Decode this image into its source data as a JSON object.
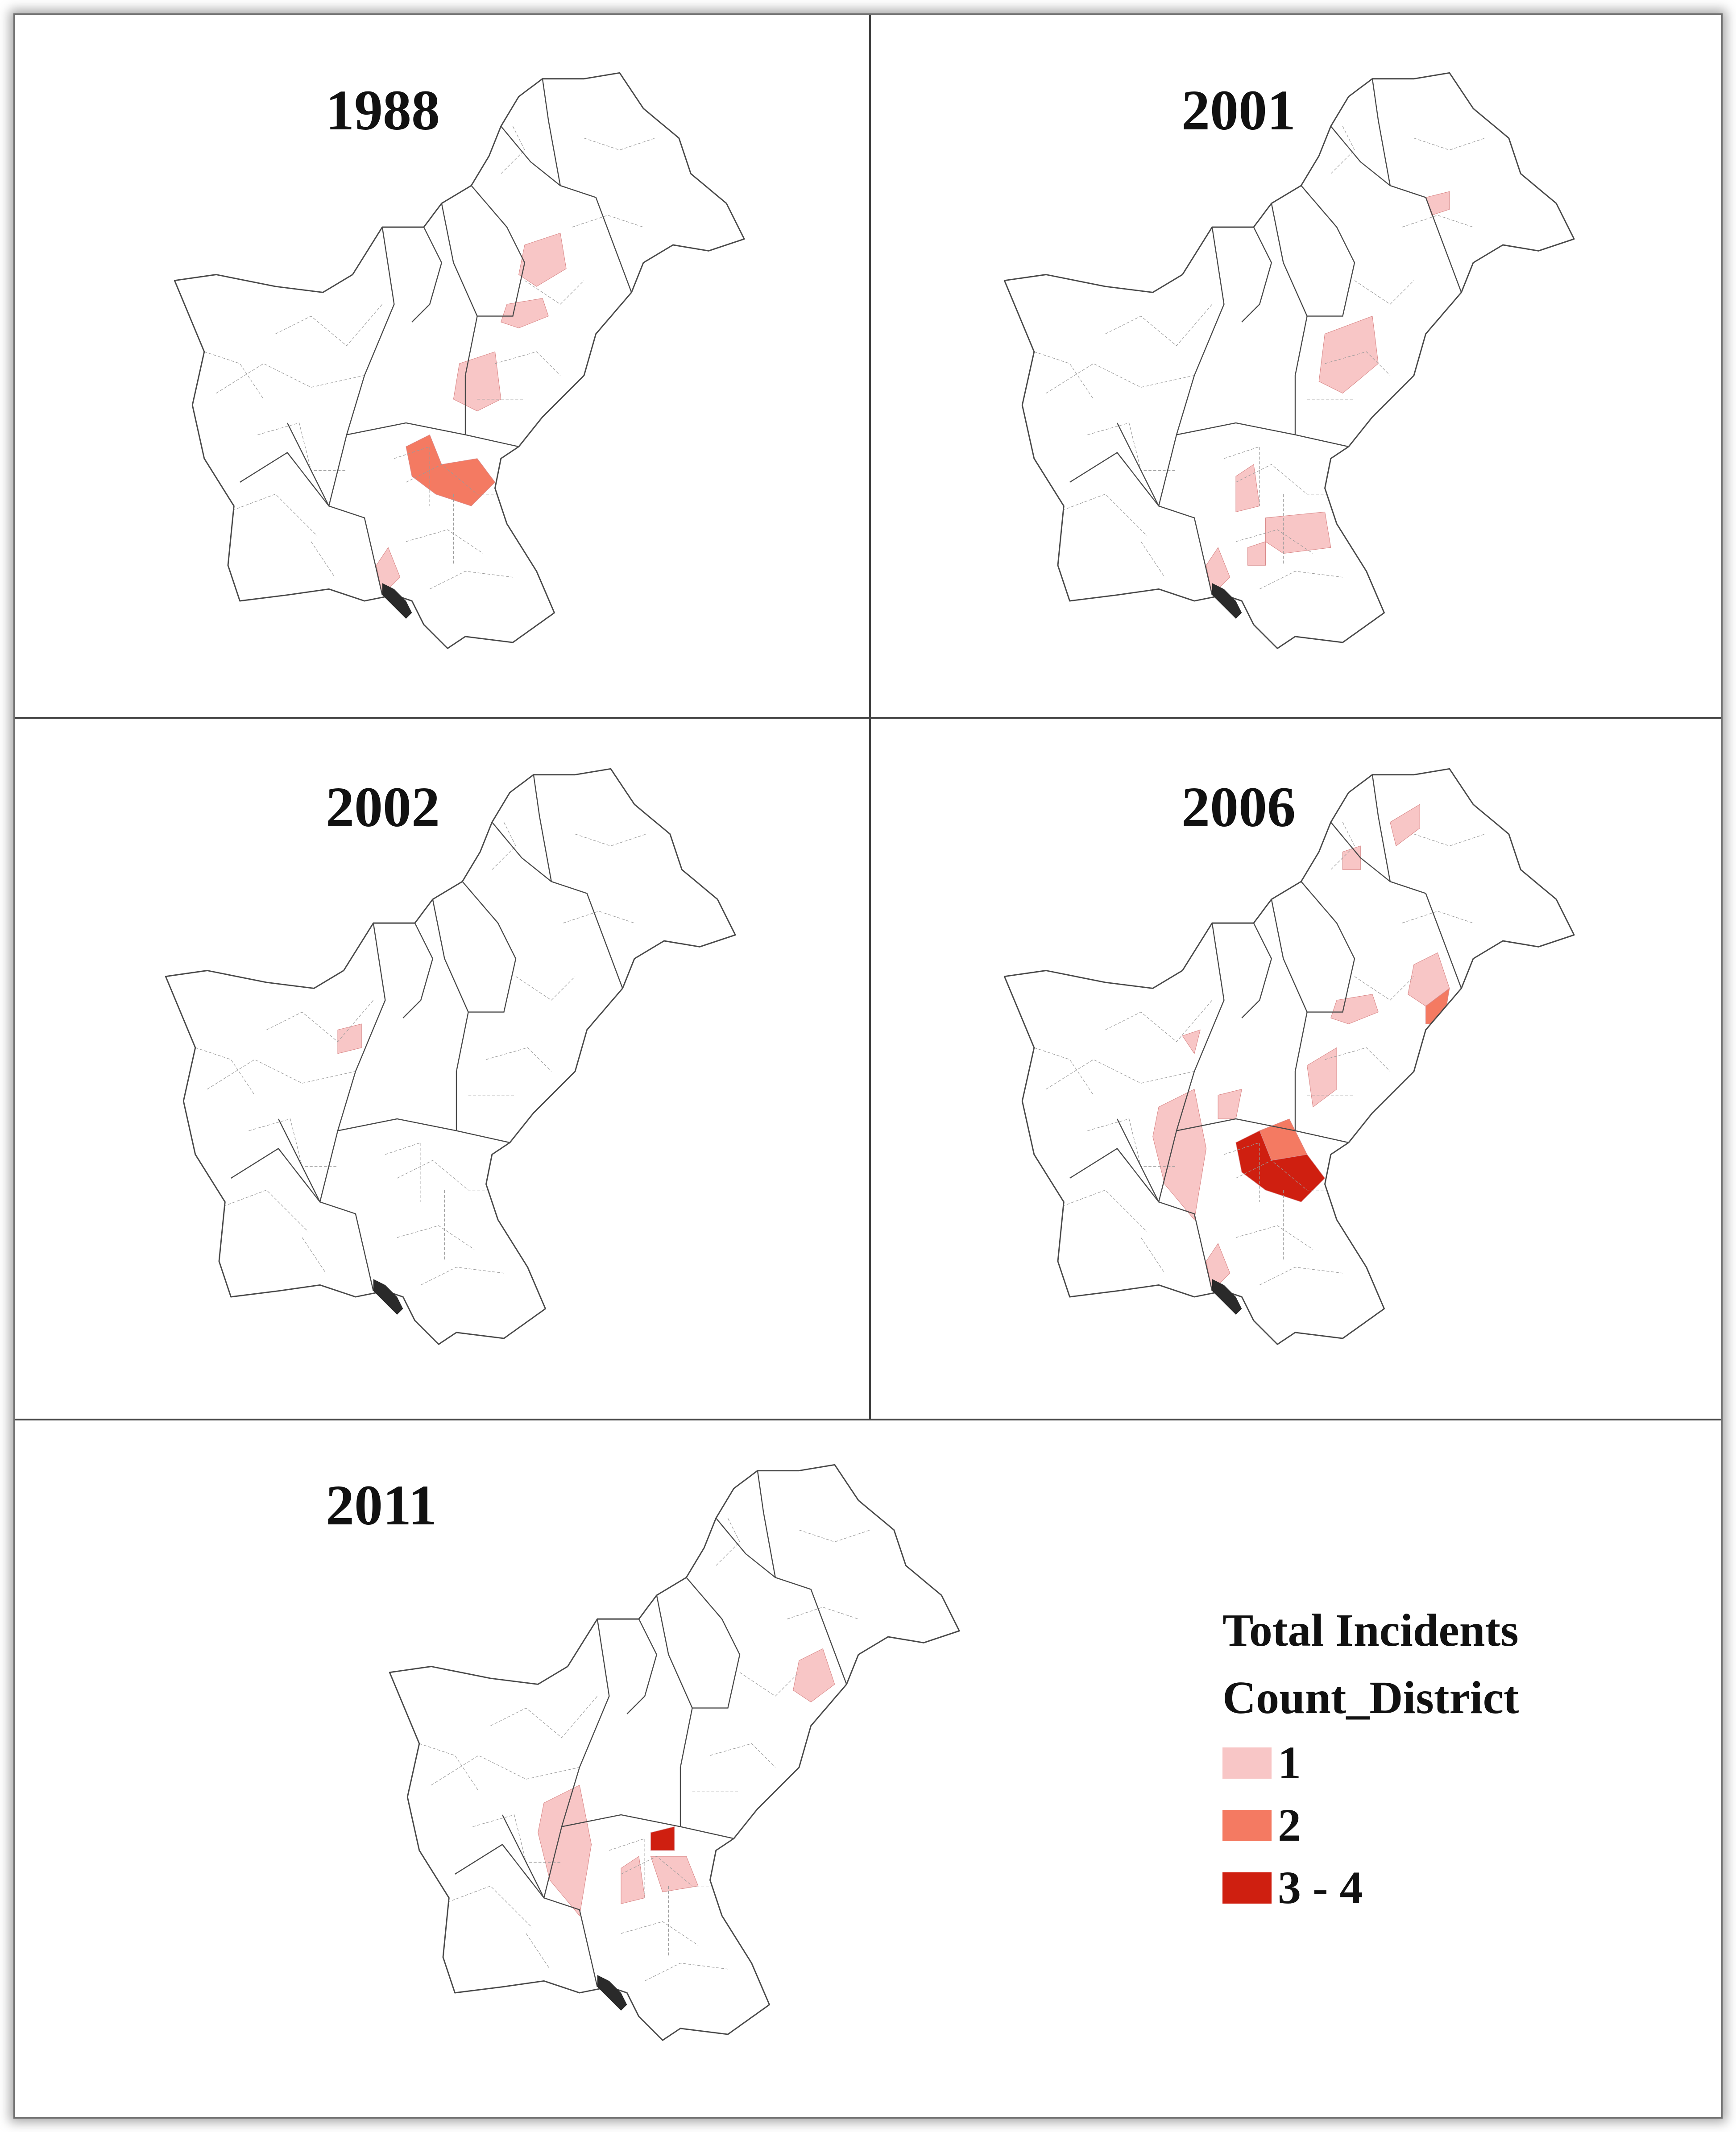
{
  "panels": [
    {
      "title": "1988",
      "districts": [
        {
          "region": "punjab-north",
          "count": 1
        },
        {
          "region": "punjab-central",
          "count": 1
        },
        {
          "region": "punjab-south",
          "count": 1
        },
        {
          "region": "sindh-north",
          "count": 2
        },
        {
          "region": "coast-west",
          "count": 1
        }
      ]
    },
    {
      "title": "2001",
      "districts": [
        {
          "region": "kashmir-border",
          "count": 1
        },
        {
          "region": "punjab-east",
          "count": 1
        },
        {
          "region": "sindh-upper-west",
          "count": 1
        },
        {
          "region": "sindh-central",
          "count": 1
        },
        {
          "region": "sindh-central-small",
          "count": 1
        },
        {
          "region": "coast-west",
          "count": 1
        }
      ]
    },
    {
      "title": "2002",
      "districts": [
        {
          "region": "balochistan-quetta",
          "count": 1
        }
      ]
    },
    {
      "title": "2006",
      "districts": [
        {
          "region": "kp-north",
          "count": 1
        },
        {
          "region": "gilgit-south",
          "count": 1
        },
        {
          "region": "punjab-northeast",
          "count": 1
        },
        {
          "region": "punjab-northeast-edge",
          "count": 2
        },
        {
          "region": "punjab-central",
          "count": 1
        },
        {
          "region": "punjab-southwest",
          "count": 1
        },
        {
          "region": "balochistan-north",
          "count": 1
        },
        {
          "region": "balochistan-central",
          "count": 1
        },
        {
          "region": "balochistan-east",
          "count": 1
        },
        {
          "region": "sindh-north-edge",
          "count": 2
        },
        {
          "region": "sindh-north",
          "count": 4
        },
        {
          "region": "coast-west",
          "count": 1
        }
      ]
    },
    {
      "title": "2011",
      "districts": [
        {
          "region": "punjab-northeast",
          "count": 1
        },
        {
          "region": "balochistan-central",
          "count": 1
        },
        {
          "region": "sindh-north-top",
          "count": 3
        },
        {
          "region": "sindh-upper-west",
          "count": 1
        },
        {
          "region": "sindh-upper-east",
          "count": 1
        }
      ]
    }
  ],
  "legend": {
    "title_line1": "Total Incidents",
    "title_line2": "Count_District",
    "classes": [
      {
        "label": "1",
        "color": "#f8c6c6"
      },
      {
        "label": "2",
        "color": "#f47a62"
      },
      {
        "label": "3 - 4",
        "color": "#cf1f10"
      }
    ]
  },
  "colors": {
    "outline": "#4a4a4a",
    "district_border": "#9a9a9a",
    "coast": "#2a2a2a",
    "land": "#ffffff"
  }
}
